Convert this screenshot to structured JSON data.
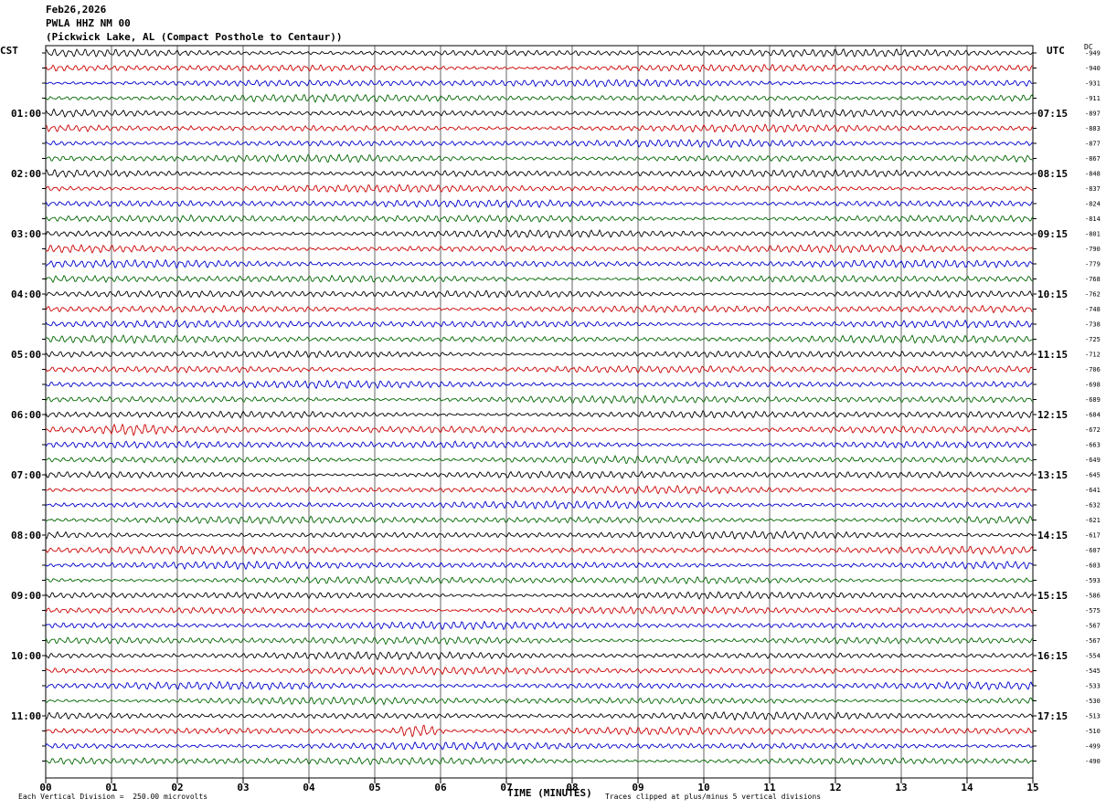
{
  "header": {
    "date": "Feb26,2026",
    "station": "PWLA HHZ NM 00",
    "location": "(Pickwick Lake, AL (Compact Posthole to Centaur))"
  },
  "labels": {
    "left_zone": "CST",
    "right_zone": "UTC",
    "dc": "DC",
    "xlabel": "TIME (MINUTES)",
    "scale_note": "Each Vertical Division =  250.00 microvolts",
    "clip_note": "Traces clipped at plus/minus 5 vertical divisions"
  },
  "colors": {
    "trace_cycle": [
      "#000000",
      "#cc0000",
      "#0000cc",
      "#006600"
    ],
    "grid": "#000000"
  },
  "chart_data": {
    "type": "line",
    "title": "PWLA HHZ NM 00",
    "xlabel": "TIME (MINUTES)",
    "xlim": [
      0,
      15
    ],
    "x_ticks": [
      "00",
      "01",
      "02",
      "03",
      "04",
      "05",
      "06",
      "07",
      "08",
      "09",
      "10",
      "11",
      "12",
      "13",
      "14",
      "15"
    ],
    "traces_per_hour": 4,
    "minutes_per_trace": 15,
    "row_count": 48,
    "left_time_labels": [
      "01:00",
      "02:00",
      "03:00",
      "04:00",
      "05:00",
      "06:00",
      "07:00",
      "08:00",
      "09:00",
      "10:00",
      "11:00"
    ],
    "right_time_labels": [
      "07:15",
      "08:15",
      "09:15",
      "10:15",
      "11:15",
      "12:15",
      "13:15",
      "14:15",
      "15:15",
      "16:15",
      "17:15"
    ],
    "dc_offsets": [
      -949,
      -940,
      -931,
      -911,
      -897,
      -883,
      -877,
      -867,
      -848,
      -837,
      -824,
      -814,
      -801,
      -790,
      -779,
      -768,
      -762,
      -748,
      -738,
      -725,
      -712,
      -706,
      -698,
      -689,
      -684,
      -672,
      -663,
      -649,
      -645,
      -641,
      -632,
      -621,
      -617,
      -607,
      -603,
      -593,
      -586,
      -575,
      -567,
      -567,
      -554,
      -545,
      -533,
      -530,
      -513,
      -510,
      -499,
      -490
    ],
    "events": [
      {
        "row": 45,
        "minute_start": 5.2,
        "minute_end": 6.1,
        "note": "larger amplitude burst"
      },
      {
        "row": 25,
        "minute_start": 0.7,
        "minute_end": 1.9,
        "note": "moderate amplitude"
      }
    ]
  }
}
